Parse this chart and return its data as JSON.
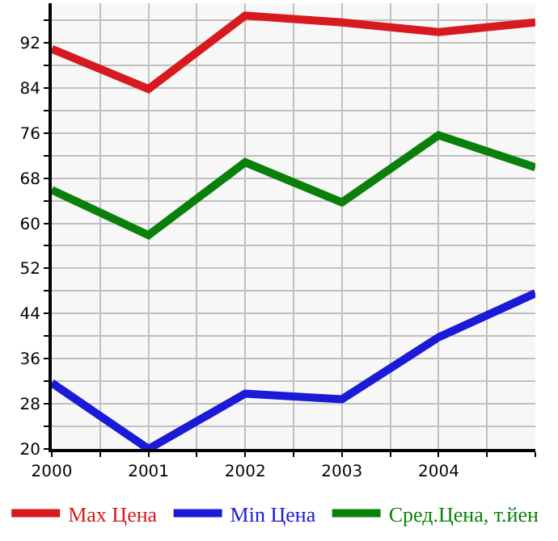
{
  "chart_data": {
    "type": "line",
    "x": [
      2000,
      2001,
      2002,
      2003,
      2004,
      2005
    ],
    "series": [
      {
        "name": "Max Цена",
        "color": "#d71a1f",
        "values": [
          90.9,
          83.8,
          96.8,
          95.6,
          93.9,
          95.6
        ]
      },
      {
        "name": "Min Цена",
        "color": "#1a1ad7",
        "values": [
          31.7,
          20,
          29.8,
          28.8,
          39.8,
          47.6
        ]
      },
      {
        "name": "Сред.Цена, т.йен",
        "color": "#0a800a",
        "values": [
          65.9,
          57.9,
          70.8,
          63.7,
          75.6,
          69.9
        ]
      }
    ],
    "xlim": [
      2000,
      2005
    ],
    "xticks": [
      2000,
      {
        "value": 2000.5,
        "label": null
      },
      2001,
      {
        "value": 2001.5,
        "label": null
      },
      2002,
      {
        "value": 2002.5,
        "label": null
      },
      2003,
      {
        "value": 2003.5,
        "label": null
      },
      2004,
      {
        "value": 2004.5,
        "label": null
      },
      {
        "value": 2005,
        "label": null
      }
    ],
    "ylim": [
      20,
      99
    ],
    "yticks": [
      20,
      {
        "value": 24,
        "label": null
      },
      28,
      {
        "value": 32,
        "label": null
      },
      36,
      {
        "value": 40,
        "label": null
      },
      44,
      {
        "value": 48,
        "label": null
      },
      52,
      {
        "value": 56,
        "label": null
      },
      60,
      {
        "value": 64,
        "label": null
      },
      68,
      {
        "value": 72,
        "label": null
      },
      76,
      {
        "value": 80,
        "label": null
      },
      84,
      {
        "value": 88,
        "label": null
      },
      92,
      {
        "value": 96,
        "label": null
      }
    ],
    "grid": true,
    "legend": "bottom",
    "marker": "none",
    "line_style": "solid"
  }
}
